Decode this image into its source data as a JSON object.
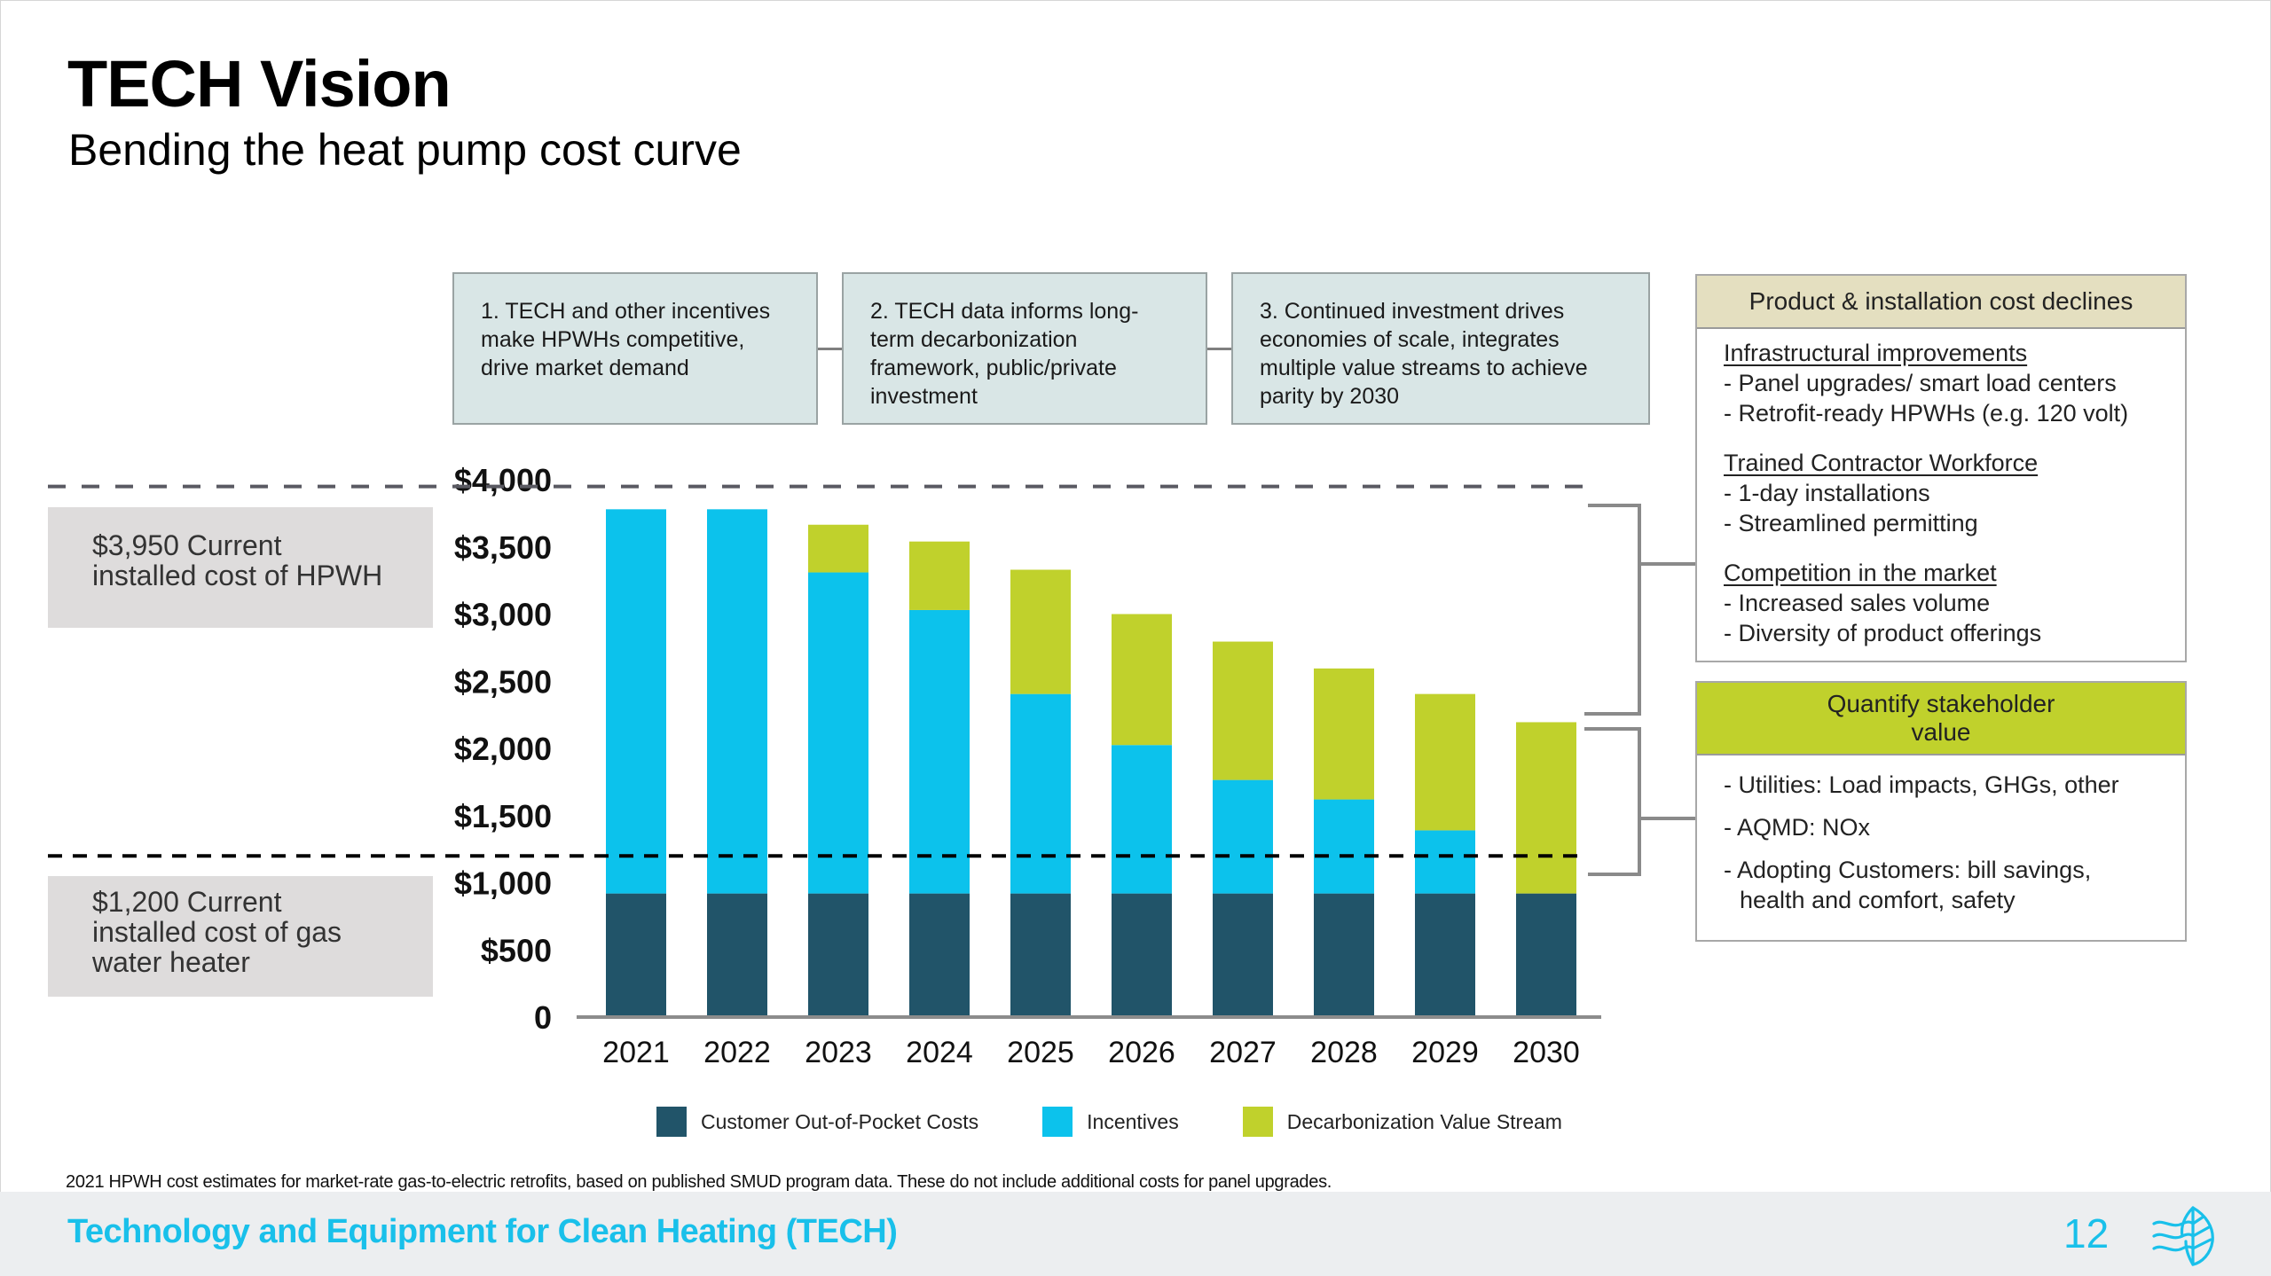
{
  "header": {
    "title": "TECH Vision",
    "subtitle": "Bending the heat pump cost curve"
  },
  "steps": [
    {
      "text": "1. TECH and other incentives make HPWHs competitive, drive market demand"
    },
    {
      "text": "2. TECH data informs long-term decarbonization framework, public/private investment"
    },
    {
      "text": "3. Continued investment drives economies of scale, integrates multiple value streams to achieve parity by 2030"
    }
  ],
  "cost_declines_box": {
    "heading": "Product & installation cost declines",
    "header_color": "#e4dfc0",
    "groups": [
      {
        "title": "Infrastructural improvements",
        "items": [
          "- Panel upgrades/ smart load centers",
          "- Retrofit-ready HPWHs (e.g. 120 volt)"
        ]
      },
      {
        "title": "Trained Contractor Workforce",
        "items": [
          "- 1-day installations",
          "- Streamlined permitting"
        ]
      },
      {
        "title": "Competition in the market",
        "items": [
          "- Increased sales volume",
          "- Diversity of product offerings"
        ]
      }
    ]
  },
  "stakeholder_box": {
    "heading": "Quantify stakeholder value",
    "header_color": "#c0d12c",
    "items": [
      "- Utilities: Load impacts, GHGs, other",
      "- AQMD: NOx",
      "- Adopting Customers: bill savings, health and comfort, safety"
    ]
  },
  "reference_labels": {
    "hpwh": "$3,950 Current installed cost of HPWH",
    "gas": "$1,200 Current installed cost of gas water heater"
  },
  "chart_data": {
    "type": "bar",
    "stacked": true,
    "title": "",
    "xlabel": "",
    "ylabel": "",
    "ylim": [
      0,
      4000
    ],
    "grid": false,
    "legend_position": "bottom",
    "categories": [
      "2021",
      "2022",
      "2023",
      "2024",
      "2025",
      "2026",
      "2027",
      "2028",
      "2029",
      "2030"
    ],
    "y_ticks": [
      0,
      500,
      1000,
      1500,
      2000,
      2500,
      3000,
      3500,
      4000
    ],
    "y_tick_labels": [
      "0",
      "$500",
      "$1,000",
      "$1,500",
      "$2,000",
      "$2,500",
      "$3,000",
      "$3,500",
      "$4,000"
    ],
    "series": [
      {
        "name": "Customer Out-of-Pocket Costs",
        "color": "#215469",
        "values": [
          920,
          920,
          920,
          920,
          920,
          920,
          920,
          920,
          920,
          920
        ]
      },
      {
        "name": "Incentives",
        "color": "#0cc2ec",
        "values": [
          2860,
          2860,
          2390,
          2110,
          1485,
          1105,
          845,
          700,
          470,
          0
        ]
      },
      {
        "name": "Decarbonization Value Stream",
        "color": "#c0d12c",
        "values": [
          0,
          0,
          355,
          510,
          925,
          975,
          1030,
          975,
          1015,
          1275
        ]
      }
    ],
    "reference_lines": [
      {
        "value": 3950,
        "label": "$3,950 Current installed cost of HPWH",
        "color": "#5a5a62"
      },
      {
        "value": 1200,
        "label": "$1,200 Current installed cost of gas water heater",
        "color": "#000000"
      }
    ]
  },
  "footnote": "2021 HPWH cost estimates for market-rate gas-to-electric retrofits, based on published SMUD program data. These do not include additional costs for panel upgrades.",
  "footer": {
    "org": "Technology and Equipment for Clean Heating (TECH)",
    "page_number": "12",
    "logo_icon": "leaf-wind-icon",
    "accent_color": "#19c0ea"
  }
}
